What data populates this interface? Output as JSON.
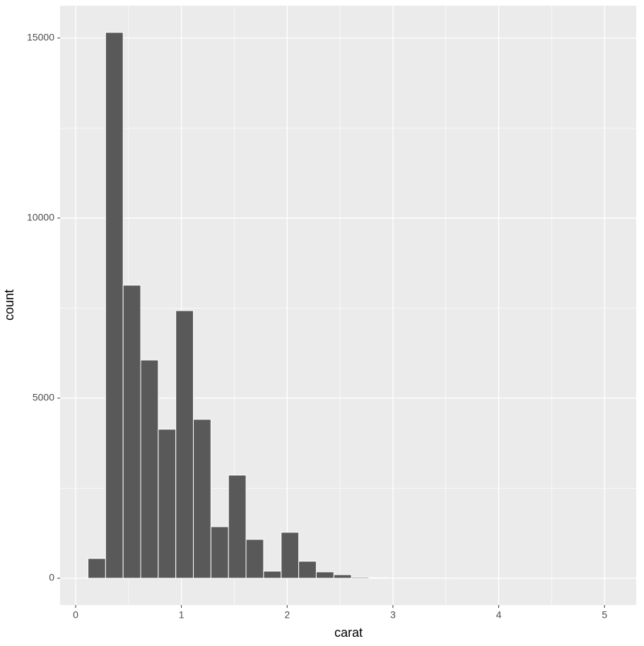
{
  "chart_data": {
    "type": "histogram",
    "x_label": "carat",
    "y_label": "count",
    "bins": [
      0.117,
      0.283,
      0.449,
      0.615,
      0.781,
      0.947,
      1.113,
      1.279,
      1.445,
      1.611,
      1.777,
      1.943,
      2.109,
      2.275,
      2.441,
      2.607,
      2.773,
      2.939,
      3.105,
      3.271,
      3.437,
      3.603,
      3.769,
      3.935,
      4.101,
      4.267,
      4.433,
      4.599,
      4.765,
      4.931,
      5.097
    ],
    "values": [
      549,
      15157,
      8137,
      6059,
      4137,
      7431,
      4412,
      1431,
      2863,
      1078,
      196,
      1275,
      471,
      176,
      98,
      30,
      15,
      5,
      5,
      3,
      2,
      1,
      0,
      0,
      1,
      0,
      0,
      0,
      0,
      1
    ],
    "color": "#595959",
    "xlim": [
      -0.147,
      5.3
    ],
    "xticks": [
      0,
      1,
      2,
      3,
      4,
      5
    ],
    "ylim": [
      -745,
      15900
    ],
    "yticks": [
      0,
      5000,
      10000,
      15000
    ],
    "grid": true
  }
}
